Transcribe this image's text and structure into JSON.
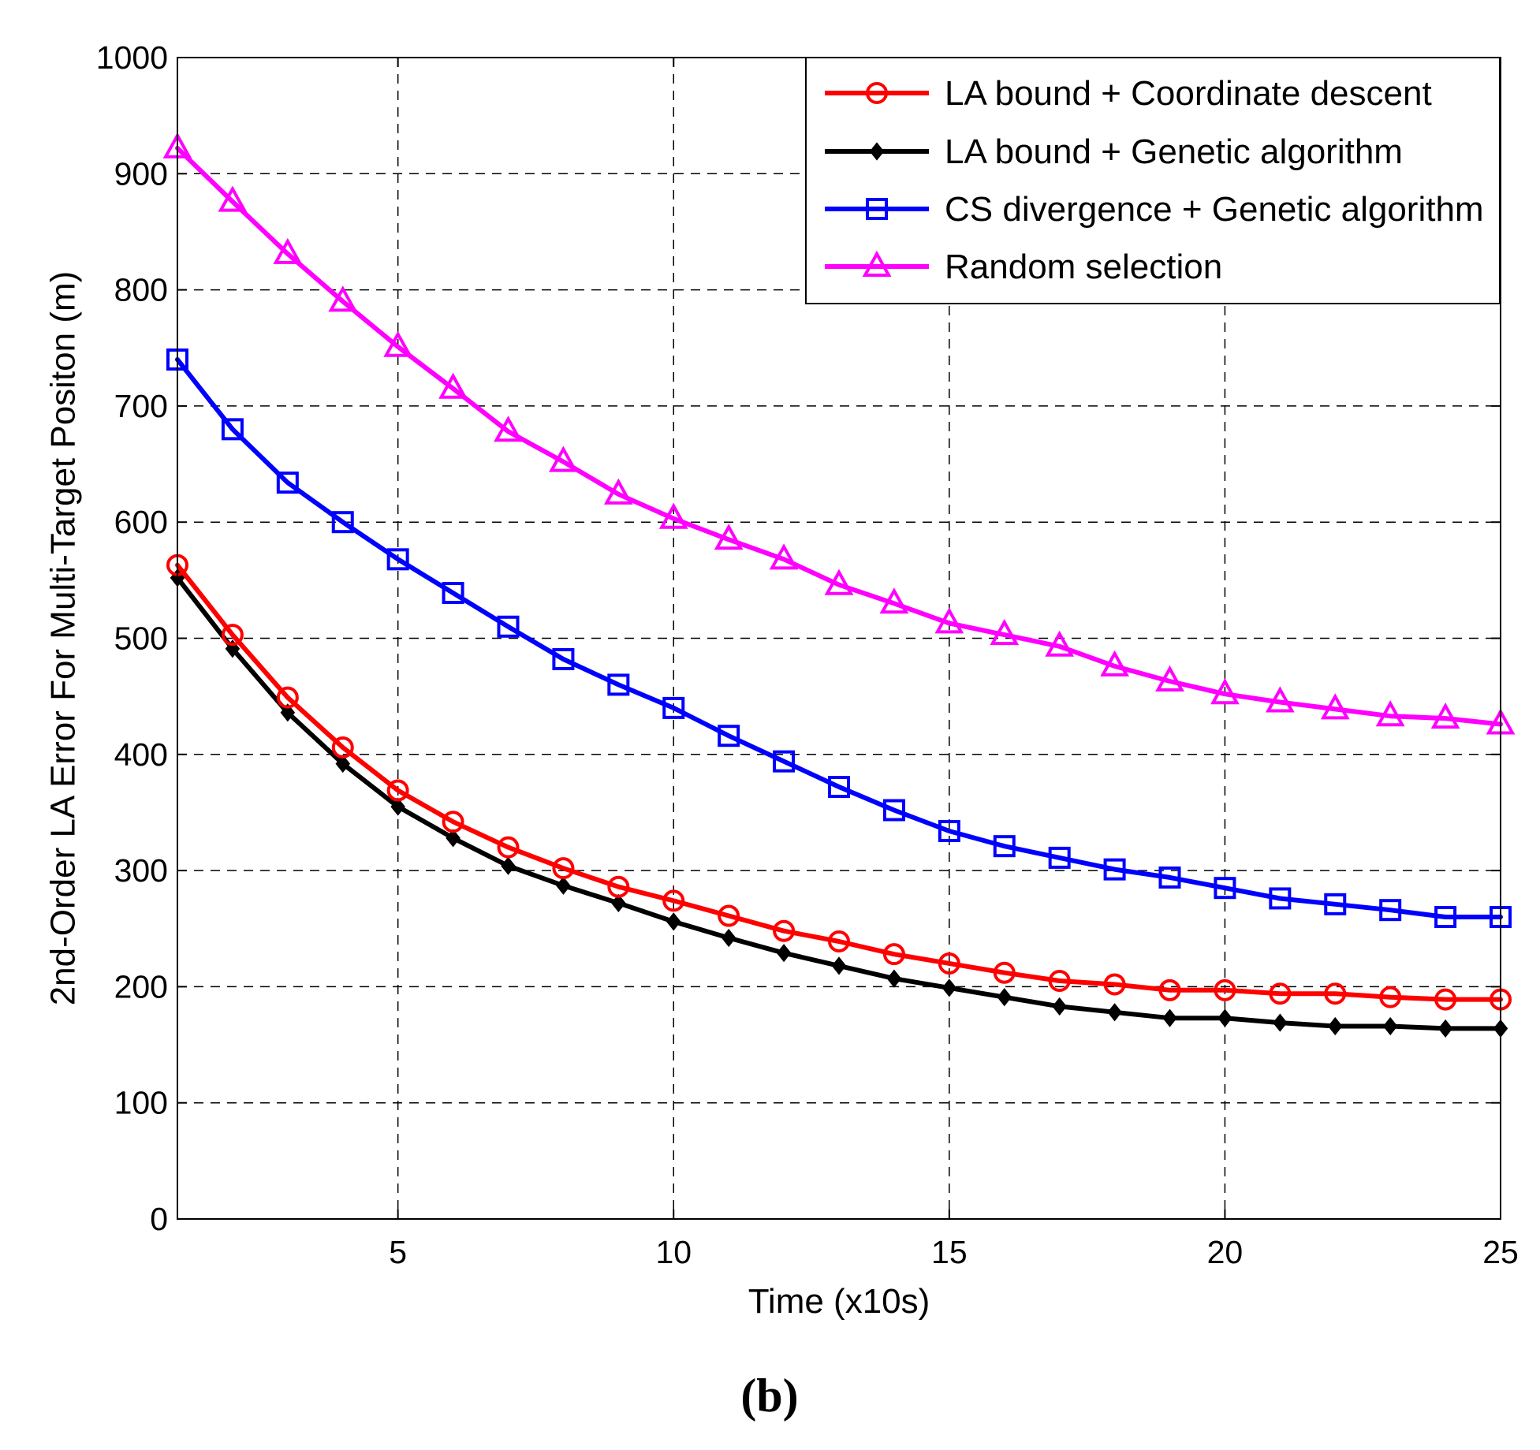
{
  "chart_data": {
    "type": "line",
    "title": "",
    "xlabel": "Time (x10s)",
    "ylabel": "2nd-Order LA Error For Multi-Target Positon (m)",
    "caption": "(b)",
    "xlim": [
      1,
      25
    ],
    "ylim": [
      0,
      1000
    ],
    "xticks": [
      5,
      10,
      15,
      20,
      25
    ],
    "yticks": [
      0,
      100,
      200,
      300,
      400,
      500,
      600,
      700,
      800,
      900,
      1000
    ],
    "grid": true,
    "legend_position": "top-right",
    "x": [
      1,
      2,
      3,
      4,
      5,
      6,
      7,
      8,
      9,
      10,
      11,
      12,
      13,
      14,
      15,
      16,
      17,
      18,
      19,
      20,
      21,
      22,
      23,
      24,
      25
    ],
    "series": [
      {
        "name": "LA bound + Coordinate descent",
        "color": "#ff0000",
        "marker": "circle",
        "values": [
          563,
          503,
          449,
          406,
          369,
          342,
          320,
          302,
          286,
          274,
          261,
          248,
          239,
          228,
          220,
          212,
          205,
          202,
          197,
          197,
          194,
          194,
          191,
          189,
          189
        ]
      },
      {
        "name": "LA bound + Genetic algorithm",
        "color": "#000000",
        "marker": "diamond",
        "values": [
          552,
          491,
          436,
          392,
          355,
          328,
          304,
          287,
          272,
          256,
          242,
          229,
          218,
          207,
          199,
          191,
          183,
          178,
          173,
          173,
          169,
          166,
          166,
          164,
          164
        ]
      },
      {
        "name": "CS divergence + Genetic algorithm",
        "color": "#0000ff",
        "marker": "square",
        "values": [
          740,
          680,
          634,
          600,
          568,
          539,
          510,
          482,
          460,
          440,
          416,
          394,
          372,
          352,
          334,
          321,
          311,
          301,
          294,
          285,
          276,
          271,
          266,
          260,
          260
        ]
      },
      {
        "name": "Random selection",
        "color": "#ff00ff",
        "marker": "triangle",
        "values": [
          922,
          876,
          831,
          790,
          751,
          715,
          678,
          652,
          624,
          603,
          585,
          568,
          546,
          530,
          513,
          503,
          493,
          476,
          463,
          452,
          445,
          439,
          433,
          431,
          426
        ]
      }
    ]
  }
}
